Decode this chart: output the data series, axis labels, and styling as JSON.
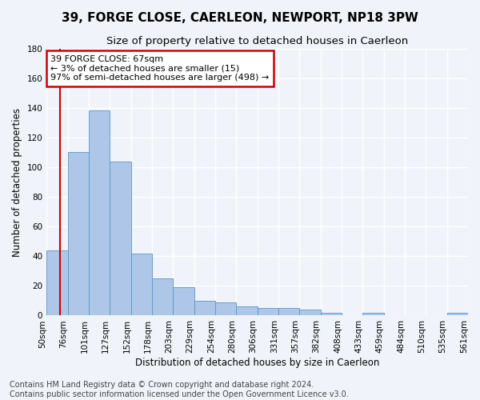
{
  "title": "39, FORGE CLOSE, CAERLEON, NEWPORT, NP18 3PW",
  "subtitle": "Size of property relative to detached houses in Caerleon",
  "xlabel": "Distribution of detached houses by size in Caerleon",
  "ylabel": "Number of detached properties",
  "bar_values": [
    44,
    110,
    138,
    104,
    42,
    25,
    19,
    10,
    9,
    6,
    5,
    5,
    4,
    2,
    0,
    2,
    0,
    0,
    0,
    2
  ],
  "bar_labels": [
    "50sqm",
    "76sqm",
    "101sqm",
    "127sqm",
    "152sqm",
    "178sqm",
    "203sqm",
    "229sqm",
    "254sqm",
    "280sqm",
    "306sqm",
    "331sqm",
    "357sqm",
    "382sqm",
    "408sqm",
    "433sqm",
    "459sqm",
    "484sqm",
    "510sqm",
    "535sqm",
    "561sqm"
  ],
  "bar_color": "#aec6e8",
  "bar_edge_color": "#5a96c8",
  "ylim": [
    0,
    180
  ],
  "yticks": [
    0,
    20,
    40,
    60,
    80,
    100,
    120,
    140,
    160,
    180
  ],
  "annotation_text": "39 FORGE CLOSE: 67sqm\n← 3% of detached houses are smaller (15)\n97% of semi-detached houses are larger (498) →",
  "annotation_box_color": "#ffffff",
  "annotation_box_edge_color": "#cc0000",
  "vline_color": "#cc0000",
  "background_color": "#f0f4fa",
  "grid_color": "#ffffff",
  "footer_text": "Contains HM Land Registry data © Crown copyright and database right 2024.\nContains public sector information licensed under the Open Government Licence v3.0.",
  "title_fontsize": 11,
  "subtitle_fontsize": 9.5,
  "label_fontsize": 8.5,
  "tick_fontsize": 7.5,
  "footer_fontsize": 7,
  "ann_fontsize": 8
}
